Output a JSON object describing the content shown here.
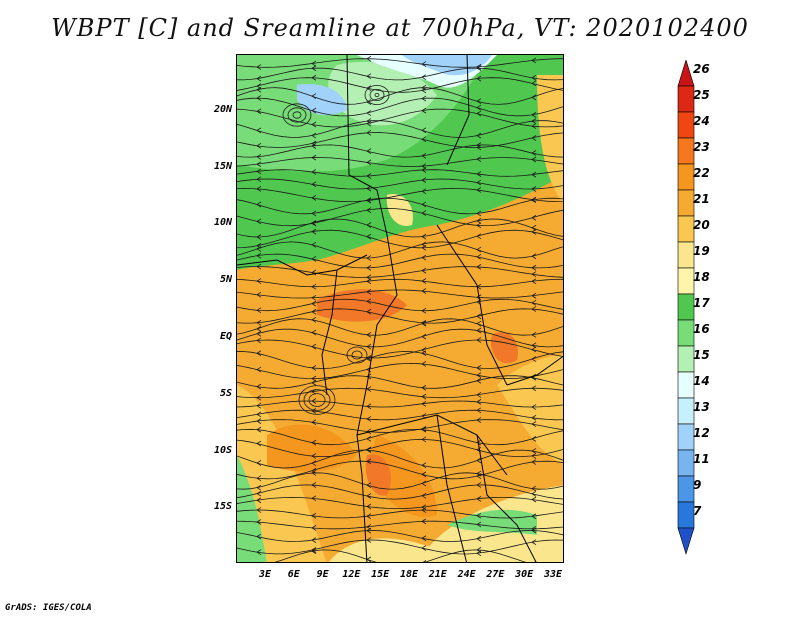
{
  "title": "WBPT [C] and Sreamline at 700hPa, VT: 2020102400",
  "footer": "GrADS: IGES/COLA",
  "lat_labels": [
    "20N",
    "15N",
    "10N",
    "5N",
    "EQ",
    "5S",
    "10S",
    "15S"
  ],
  "lon_labels": [
    "3E",
    "6E",
    "9E",
    "12E",
    "15E",
    "18E",
    "21E",
    "24E",
    "27E",
    "30E",
    "33E"
  ],
  "colorbar": {
    "levels": [
      "26",
      "25",
      "24",
      "23",
      "22",
      "21",
      "20",
      "19",
      "18",
      "17",
      "16",
      "15",
      "14",
      "13",
      "12",
      "11",
      "9",
      "7"
    ],
    "colors": [
      "#c81414",
      "#dc2814",
      "#f04614",
      "#f5781e",
      "#f5961e",
      "#f5aa32",
      "#fac850",
      "#fae68c",
      "#fff5aa",
      "#50c850",
      "#78dc78",
      "#b4f0b4",
      "#e6ffff",
      "#c8f0fa",
      "#a0d2fa",
      "#78b4f0",
      "#4b96e6",
      "#2878dc",
      "#1e50c8"
    ]
  },
  "palette": {
    "orange": "#f5aa32",
    "dark_orange": "#f5961e",
    "red_orange": "#f07828",
    "yellow": "#fac850",
    "pale_yellow": "#fae68c",
    "green": "#50c850",
    "light_green": "#78dc78",
    "pale_green": "#b4f0b4",
    "light_blue": "#a0d2fa",
    "cyan": "#e6ffff"
  }
}
